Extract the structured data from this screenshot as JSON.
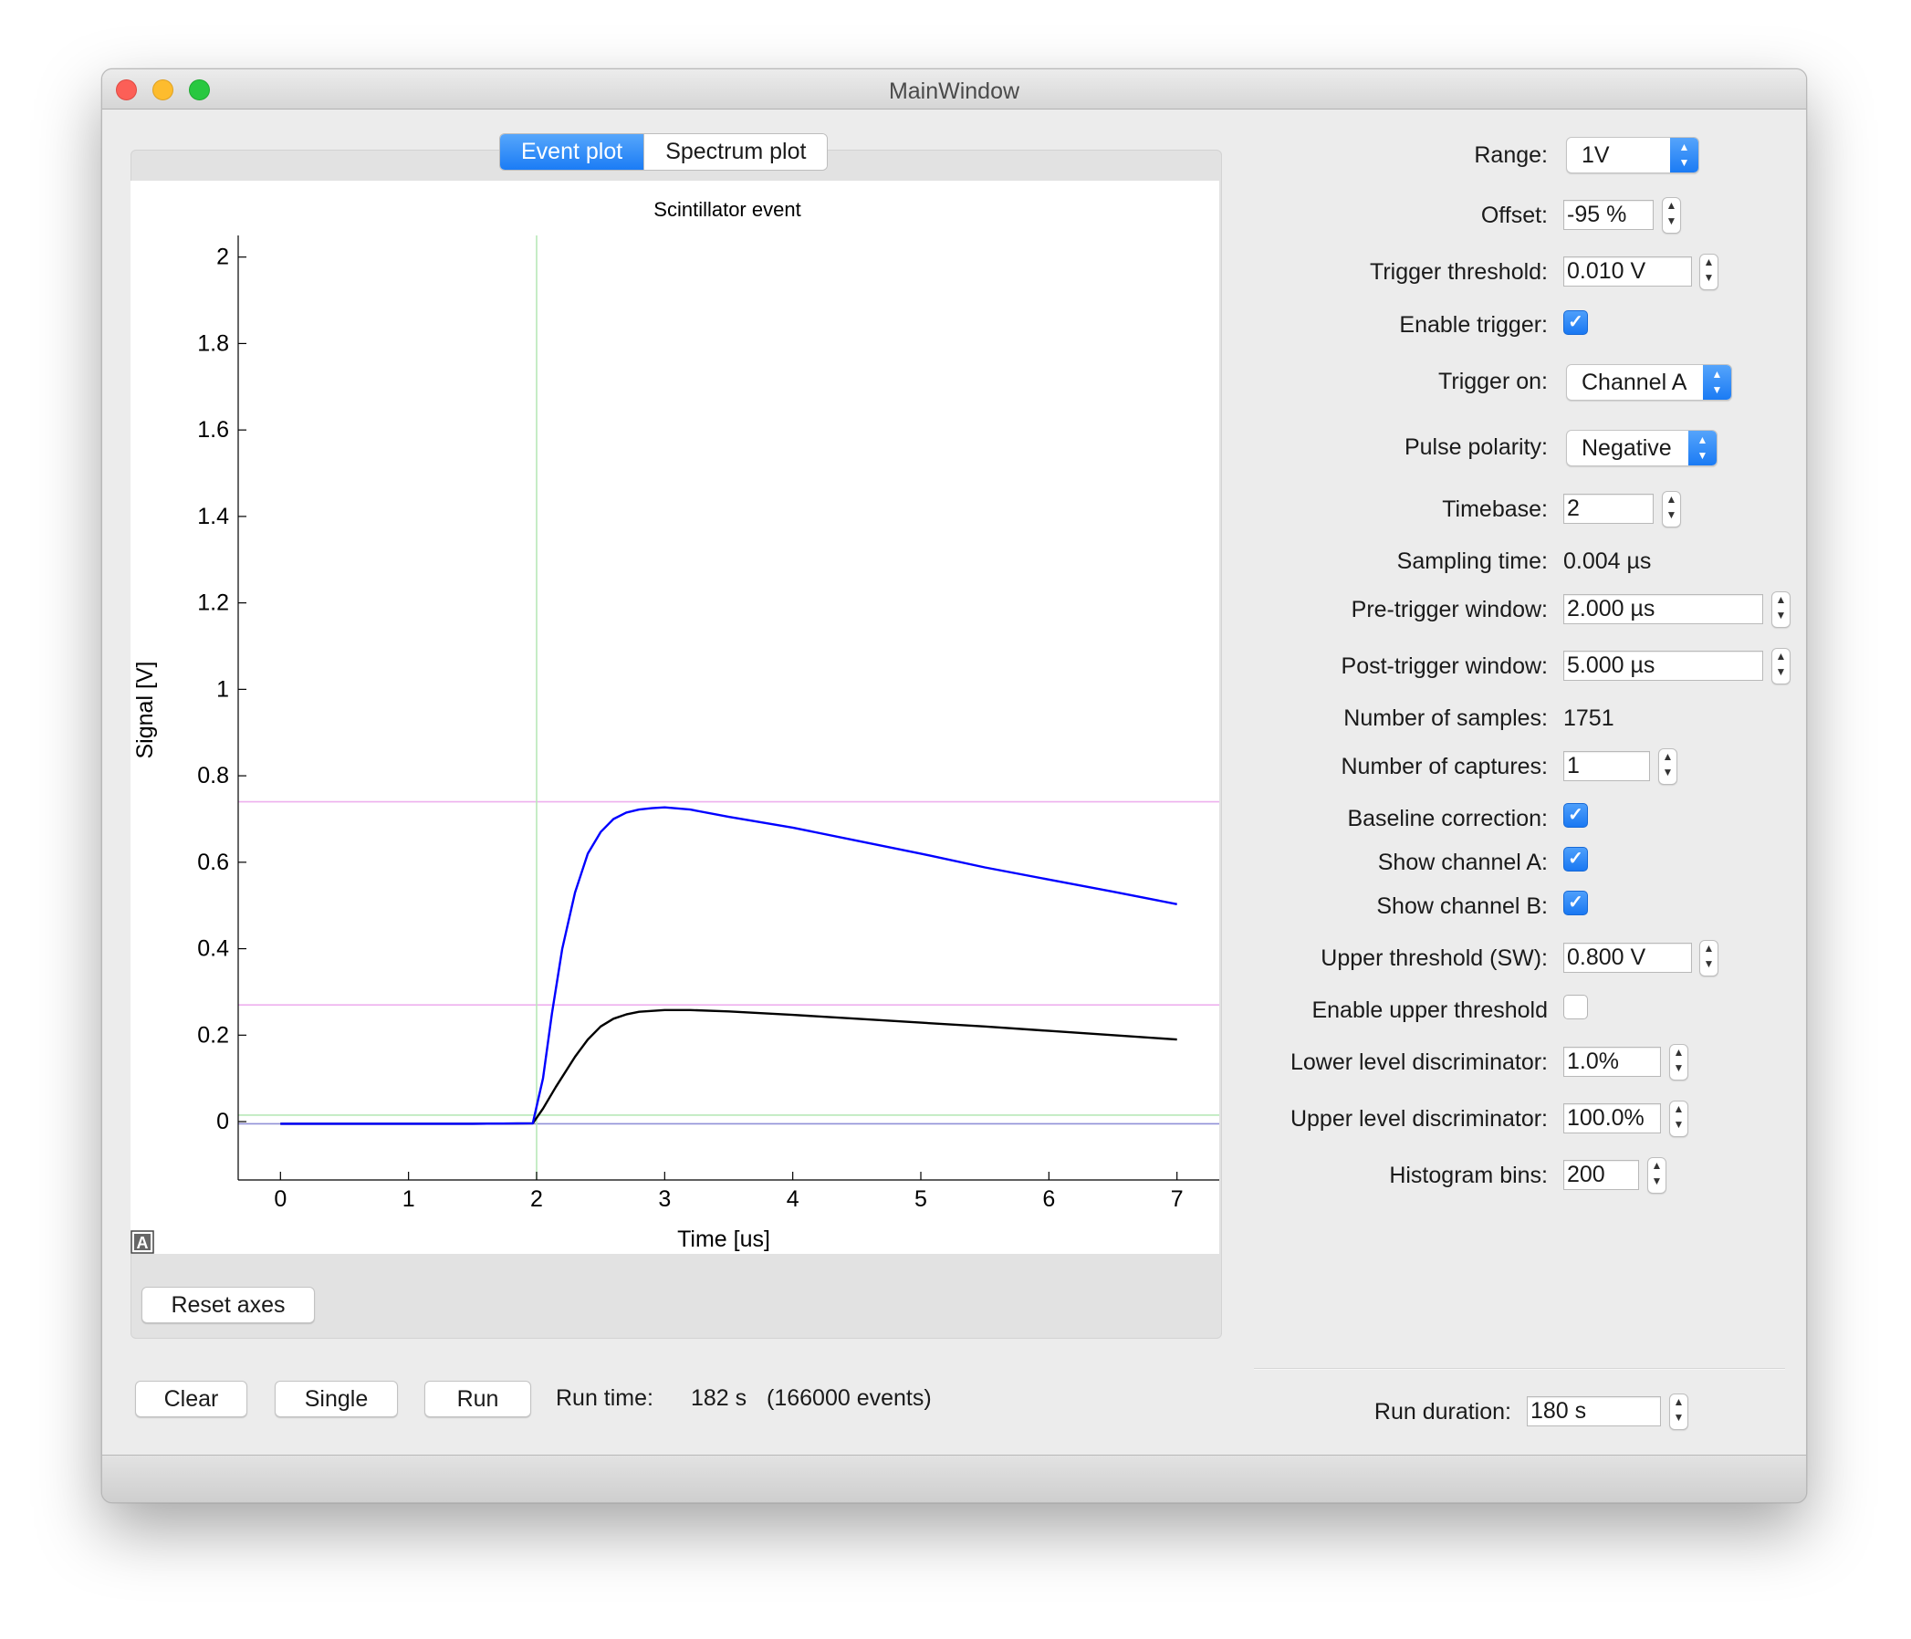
{
  "window": {
    "title": "MainWindow"
  },
  "tabs": [
    {
      "label": "Event plot",
      "active": true
    },
    {
      "label": "Spectrum plot",
      "active": false
    }
  ],
  "plot": {
    "reset_label": "Reset axes",
    "autorange_label": "A"
  },
  "chart_data": {
    "type": "line",
    "title": "Scintillator event",
    "xlabel": "Time [us]",
    "ylabel": "Signal [V]",
    "xlim": [
      -0.33,
      7.33
    ],
    "ylim": [
      -0.135,
      2.05
    ],
    "x_ticks": [
      0,
      1,
      2,
      3,
      4,
      5,
      6,
      7
    ],
    "y_ticks": [
      0,
      0.2,
      0.4,
      0.6,
      0.8,
      1,
      1.2,
      1.4,
      1.6,
      1.8,
      2
    ],
    "x_tick_labels": [
      "0",
      "1",
      "2",
      "3",
      "4",
      "5",
      "6",
      "7"
    ],
    "y_tick_labels": [
      "0",
      "0.2",
      "0.4",
      "0.6",
      "0.8",
      "1",
      "1.2",
      "1.4",
      "1.6",
      "1.8",
      "2"
    ],
    "grid": false,
    "colors": {
      "channel_a": "#0000ff",
      "channel_b": "#000000",
      "threshold": "#eeb0ee",
      "trigger": "#b8e8b8",
      "baseline": "#9090d8"
    },
    "series": [
      {
        "color": "#0000ff",
        "x": [
          0,
          0.5,
          1,
          1.5,
          1.97,
          2.05,
          2.12,
          2.2,
          2.3,
          2.4,
          2.5,
          2.6,
          2.7,
          2.8,
          2.9,
          3,
          3.2,
          3.5,
          4,
          4.5,
          5,
          5.5,
          6,
          6.5,
          7
        ],
        "y": [
          -0.005,
          -0.005,
          -0.005,
          -0.005,
          -0.004,
          0.1,
          0.25,
          0.4,
          0.53,
          0.62,
          0.67,
          0.7,
          0.715,
          0.722,
          0.725,
          0.727,
          0.722,
          0.705,
          0.68,
          0.65,
          0.62,
          0.588,
          0.56,
          0.532,
          0.503
        ]
      },
      {
        "color": "#000000",
        "x": [
          0,
          0.5,
          1,
          1.5,
          1.97,
          2.05,
          2.15,
          2.3,
          2.4,
          2.5,
          2.6,
          2.7,
          2.8,
          3,
          3.2,
          3.5,
          4,
          4.5,
          5,
          5.5,
          6,
          6.5,
          7
        ],
        "y": [
          -0.005,
          -0.005,
          -0.005,
          -0.005,
          -0.004,
          0.03,
          0.08,
          0.15,
          0.19,
          0.22,
          0.238,
          0.248,
          0.254,
          0.258,
          0.258,
          0.255,
          0.247,
          0.238,
          0.229,
          0.22,
          0.21,
          0.2,
          0.19
        ]
      }
    ],
    "annotations": [
      {
        "kind": "horizontal-line",
        "y": 0.74,
        "color": "#eeb0ee"
      },
      {
        "kind": "horizontal-line",
        "y": 0.27,
        "color": "#eeb0ee"
      },
      {
        "kind": "horizontal-line",
        "y": 0.015,
        "color": "#b8e8b8"
      },
      {
        "kind": "horizontal-line",
        "y": -0.005,
        "color": "#9090d8"
      },
      {
        "kind": "vertical-line",
        "x": 2,
        "color": "#b8e8b8"
      }
    ]
  },
  "controls": {
    "range": {
      "label": "Range:",
      "value": "1V"
    },
    "offset": {
      "label": "Offset:",
      "value": "-95 %"
    },
    "trigger_threshold": {
      "label": "Trigger threshold:",
      "value": "0.010 V"
    },
    "enable_trigger": {
      "label": "Enable trigger:",
      "checked": true
    },
    "trigger_on": {
      "label": "Trigger on:",
      "value": "Channel A"
    },
    "pulse_polarity": {
      "label": "Pulse polarity:",
      "value": "Negative"
    },
    "timebase": {
      "label": "Timebase:",
      "value": "2"
    },
    "sampling_time": {
      "label": "Sampling time:",
      "value": "0.004 µs"
    },
    "pre_trigger_window": {
      "label": "Pre-trigger window:",
      "value": "2.000 µs"
    },
    "post_trigger_window": {
      "label": "Post-trigger window:",
      "value": "5.000 µs"
    },
    "number_of_samples": {
      "label": "Number of samples:",
      "value": "1751"
    },
    "number_of_captures": {
      "label": "Number of captures:",
      "value": "1"
    },
    "baseline_correction": {
      "label": "Baseline correction:",
      "checked": true
    },
    "show_channel_a": {
      "label": "Show channel A:",
      "checked": true
    },
    "show_channel_b": {
      "label": "Show channel B:",
      "checked": true
    },
    "upper_threshold_sw": {
      "label": "Upper threshold (SW):",
      "value": "0.800 V"
    },
    "enable_upper_threshold": {
      "label": "Enable upper threshold",
      "checked": false
    },
    "lower_level_discriminator": {
      "label": "Lower level discriminator:",
      "value": "1.0%"
    },
    "upper_level_discriminator": {
      "label": "Upper level discriminator:",
      "value": "100.0%"
    },
    "histogram_bins": {
      "label": "Histogram bins:",
      "value": "200"
    }
  },
  "run": {
    "clear_label": "Clear",
    "single_label": "Single",
    "run_label": "Run",
    "run_time_label": "Run time:",
    "run_time_value": "182 s",
    "events_value": "(166000 events)",
    "run_duration_label": "Run duration:",
    "run_duration_value": "180 s"
  }
}
